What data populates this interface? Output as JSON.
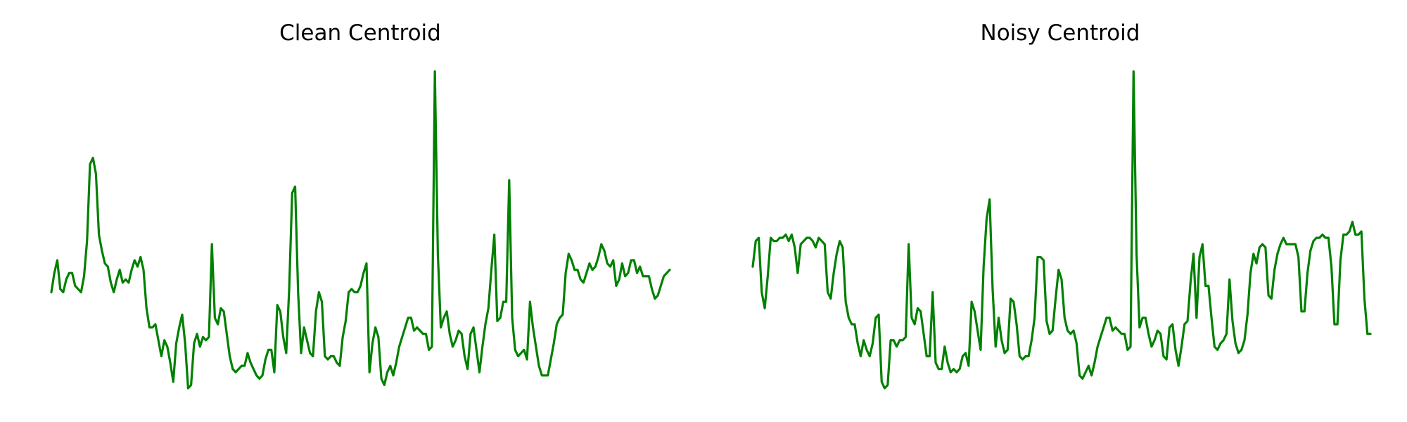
{
  "figure": {
    "background": "#ffffff",
    "line_color": "#008000"
  },
  "chart_data": [
    {
      "type": "line",
      "title": "Clean Centroid",
      "xlabel": "",
      "ylabel": "",
      "axes_visible": false,
      "grid": false,
      "legend": "none",
      "ylim": [
        0,
        1
      ],
      "series": [
        {
          "color": "#008000",
          "values": [
            0.3,
            0.36,
            0.4,
            0.31,
            0.3,
            0.34,
            0.36,
            0.36,
            0.32,
            0.31,
            0.3,
            0.35,
            0.46,
            0.7,
            0.72,
            0.67,
            0.48,
            0.43,
            0.39,
            0.38,
            0.33,
            0.3,
            0.34,
            0.37,
            0.33,
            0.34,
            0.33,
            0.37,
            0.4,
            0.38,
            0.41,
            0.37,
            0.25,
            0.19,
            0.19,
            0.2,
            0.15,
            0.1,
            0.15,
            0.13,
            0.08,
            0.02,
            0.14,
            0.19,
            0.23,
            0.14,
            0.0,
            0.01,
            0.14,
            0.17,
            0.13,
            0.16,
            0.15,
            0.16,
            0.45,
            0.22,
            0.2,
            0.25,
            0.24,
            0.17,
            0.1,
            0.06,
            0.05,
            0.06,
            0.07,
            0.07,
            0.11,
            0.08,
            0.06,
            0.04,
            0.03,
            0.04,
            0.09,
            0.12,
            0.12,
            0.05,
            0.26,
            0.24,
            0.16,
            0.11,
            0.31,
            0.61,
            0.63,
            0.3,
            0.11,
            0.19,
            0.15,
            0.11,
            0.1,
            0.24,
            0.3,
            0.27,
            0.1,
            0.09,
            0.1,
            0.1,
            0.08,
            0.07,
            0.16,
            0.21,
            0.3,
            0.31,
            0.3,
            0.3,
            0.32,
            0.36,
            0.39,
            0.05,
            0.14,
            0.19,
            0.16,
            0.03,
            0.01,
            0.05,
            0.07,
            0.04,
            0.08,
            0.13,
            0.16,
            0.19,
            0.22,
            0.22,
            0.18,
            0.19,
            0.18,
            0.17,
            0.17,
            0.12,
            0.13,
            0.99,
            0.42,
            0.19,
            0.22,
            0.24,
            0.17,
            0.13,
            0.15,
            0.18,
            0.17,
            0.1,
            0.06,
            0.17,
            0.19,
            0.12,
            0.05,
            0.13,
            0.2,
            0.25,
            0.37,
            0.48,
            0.21,
            0.22,
            0.27,
            0.27,
            0.65,
            0.22,
            0.12,
            0.1,
            0.11,
            0.12,
            0.09,
            0.27,
            0.19,
            0.13,
            0.07,
            0.04,
            0.04,
            0.04,
            0.09,
            0.14,
            0.2,
            0.22,
            0.23,
            0.36,
            0.42,
            0.4,
            0.37,
            0.37,
            0.34,
            0.33,
            0.36,
            0.39,
            0.37,
            0.38,
            0.41,
            0.45,
            0.43,
            0.39,
            0.38,
            0.4,
            0.32,
            0.34,
            0.39,
            0.35,
            0.36,
            0.4,
            0.4,
            0.36,
            0.38,
            0.35,
            0.35,
            0.35,
            0.31,
            0.28,
            0.29,
            0.32,
            0.35,
            0.36,
            0.37
          ]
        }
      ]
    },
    {
      "type": "line",
      "title": "Noisy Centroid",
      "xlabel": "",
      "ylabel": "",
      "axes_visible": false,
      "grid": false,
      "legend": "none",
      "ylim": [
        0,
        1
      ],
      "series": [
        {
          "color": "#008000",
          "values": [
            0.38,
            0.46,
            0.47,
            0.3,
            0.25,
            0.35,
            0.47,
            0.46,
            0.46,
            0.47,
            0.47,
            0.48,
            0.46,
            0.48,
            0.44,
            0.36,
            0.45,
            0.46,
            0.47,
            0.47,
            0.46,
            0.44,
            0.47,
            0.46,
            0.45,
            0.3,
            0.28,
            0.36,
            0.42,
            0.46,
            0.44,
            0.27,
            0.22,
            0.2,
            0.2,
            0.14,
            0.1,
            0.15,
            0.12,
            0.1,
            0.14,
            0.22,
            0.23,
            0.02,
            0.0,
            0.01,
            0.15,
            0.15,
            0.13,
            0.15,
            0.15,
            0.16,
            0.45,
            0.22,
            0.2,
            0.25,
            0.24,
            0.17,
            0.1,
            0.1,
            0.3,
            0.08,
            0.06,
            0.06,
            0.13,
            0.08,
            0.05,
            0.06,
            0.05,
            0.06,
            0.1,
            0.11,
            0.07,
            0.27,
            0.24,
            0.18,
            0.12,
            0.38,
            0.53,
            0.59,
            0.31,
            0.13,
            0.22,
            0.15,
            0.11,
            0.12,
            0.28,
            0.27,
            0.2,
            0.1,
            0.09,
            0.1,
            0.1,
            0.15,
            0.22,
            0.41,
            0.41,
            0.4,
            0.21,
            0.17,
            0.18,
            0.28,
            0.37,
            0.34,
            0.22,
            0.18,
            0.17,
            0.18,
            0.14,
            0.04,
            0.03,
            0.05,
            0.07,
            0.04,
            0.08,
            0.13,
            0.16,
            0.19,
            0.22,
            0.22,
            0.18,
            0.19,
            0.18,
            0.17,
            0.17,
            0.12,
            0.13,
            0.99,
            0.42,
            0.19,
            0.22,
            0.22,
            0.17,
            0.13,
            0.15,
            0.18,
            0.17,
            0.1,
            0.09,
            0.19,
            0.2,
            0.12,
            0.07,
            0.13,
            0.2,
            0.21,
            0.33,
            0.42,
            0.22,
            0.41,
            0.45,
            0.32,
            0.32,
            0.22,
            0.13,
            0.12,
            0.14,
            0.15,
            0.17,
            0.34,
            0.21,
            0.14,
            0.11,
            0.12,
            0.15,
            0.23,
            0.36,
            0.42,
            0.39,
            0.44,
            0.45,
            0.44,
            0.29,
            0.28,
            0.37,
            0.42,
            0.45,
            0.47,
            0.45,
            0.45,
            0.45,
            0.45,
            0.41,
            0.24,
            0.24,
            0.36,
            0.43,
            0.46,
            0.47,
            0.47,
            0.48,
            0.47,
            0.47,
            0.38,
            0.2,
            0.2,
            0.4,
            0.48,
            0.48,
            0.49,
            0.52,
            0.48,
            0.48,
            0.49,
            0.28,
            0.17,
            0.17
          ]
        }
      ]
    }
  ]
}
